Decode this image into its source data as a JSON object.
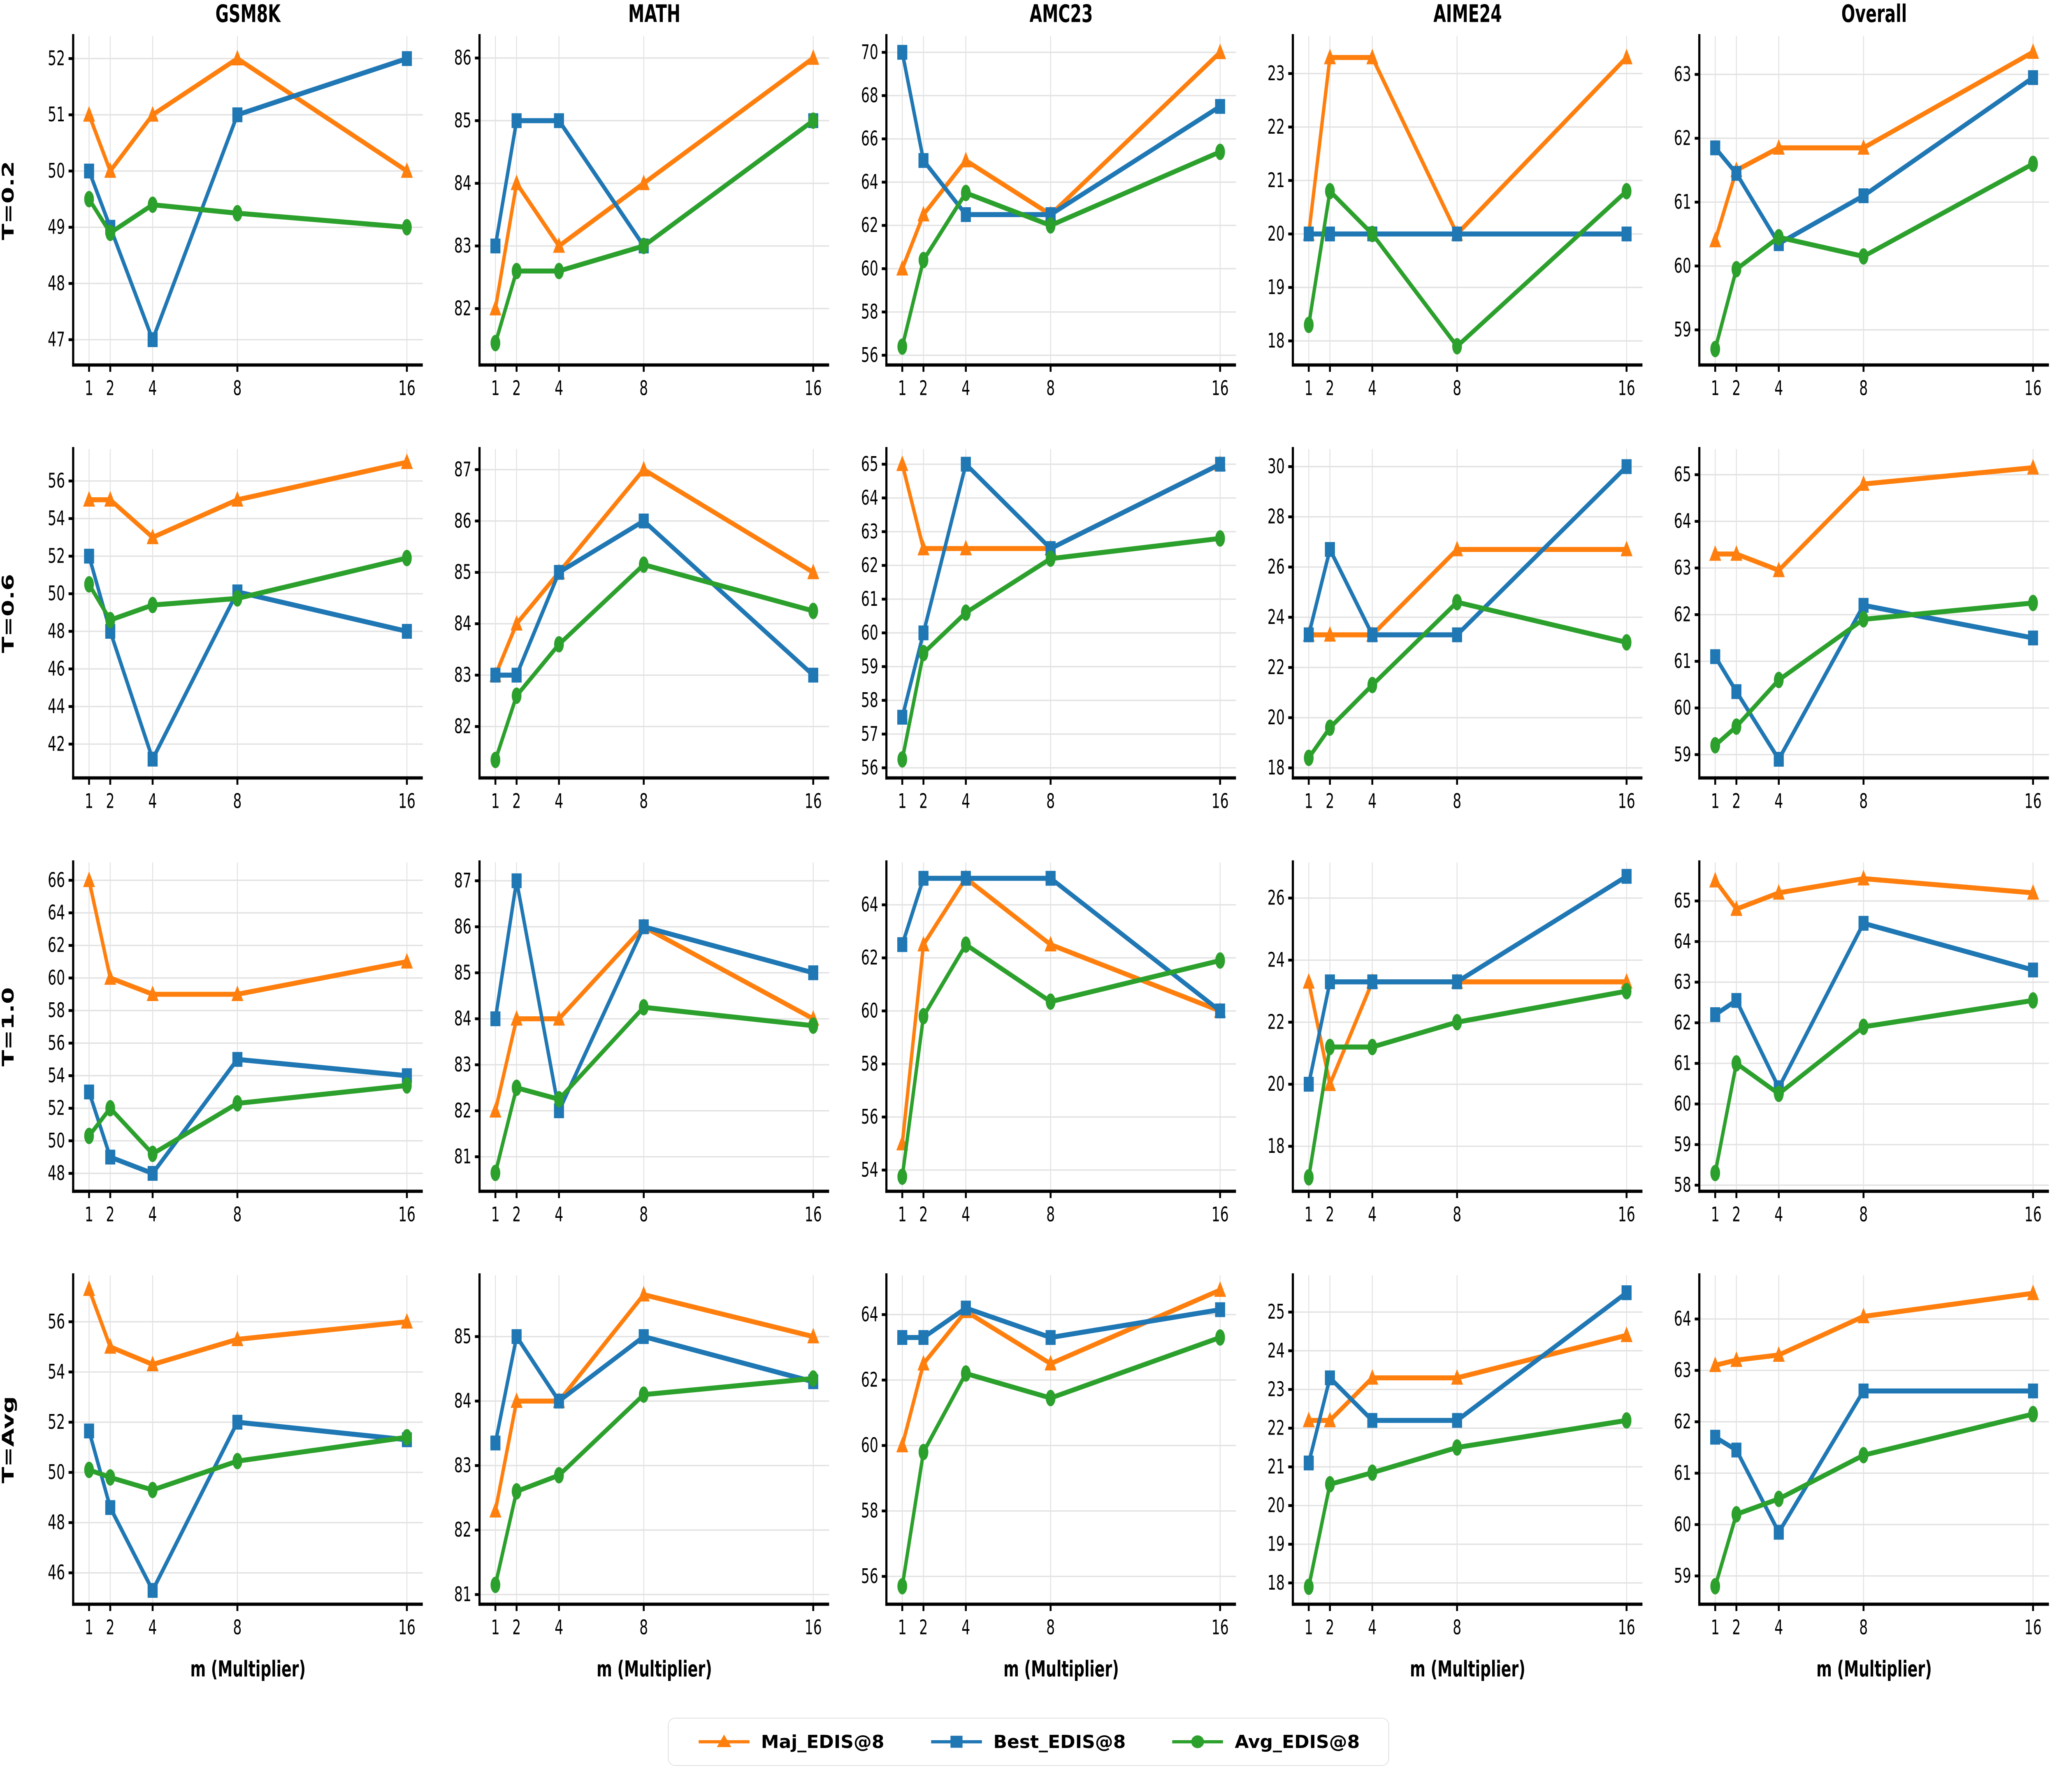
{
  "figure": {
    "row_labels": [
      "T=0.2",
      "T=0.6",
      "T=1.0",
      "T=Avg"
    ],
    "col_titles": [
      "GSM8K",
      "MATH",
      "AMC23",
      "AIME24",
      "Overall"
    ],
    "xlabel": "m (Multiplier)",
    "x_tick_labels": [
      "1",
      "2",
      "4",
      "8",
      "16"
    ]
  },
  "legend": {
    "items": [
      {
        "label": "Maj_EDIS@8",
        "color": "#ff7f0e",
        "marker": "triangle"
      },
      {
        "label": "Best_EDIS@8",
        "color": "#1f77b4",
        "marker": "square"
      },
      {
        "label": "Avg_EDIS@8",
        "color": "#2ca02c",
        "marker": "circle"
      }
    ]
  },
  "chart_data": {
    "type": "line",
    "x": [
      1,
      2,
      4,
      8,
      16
    ],
    "xlabel": "m (Multiplier)",
    "xlim": [
      0.25,
      16.75
    ],
    "grid": true,
    "rows": [
      "T=0.2",
      "T=0.6",
      "T=1.0",
      "T=Avg"
    ],
    "cols": [
      "GSM8K",
      "MATH",
      "AMC23",
      "AIME24",
      "Overall"
    ],
    "series_names": [
      "Maj_EDIS@8",
      "Best_EDIS@8",
      "Avg_EDIS@8"
    ],
    "series_colors": [
      "#ff7f0e",
      "#1f77b4",
      "#2ca02c"
    ],
    "series_markers": [
      "triangle",
      "square",
      "circle"
    ],
    "subplots": [
      {
        "row": "T=0.2",
        "col": "GSM8K",
        "yticks": [
          47,
          48,
          49,
          50,
          51,
          52
        ],
        "ylim": [
          46.55,
          52.4
        ],
        "maj": [
          51,
          50,
          51,
          52,
          50
        ],
        "best": [
          50,
          49,
          47,
          51,
          52
        ],
        "avg": [
          49.5,
          48.9,
          49.4,
          49.25,
          49
        ]
      },
      {
        "row": "T=0.2",
        "col": "MATH",
        "yticks": [
          82,
          83,
          84,
          85,
          86
        ],
        "ylim": [
          81.1,
          86.35
        ],
        "maj": [
          82,
          84,
          83,
          84,
          86
        ],
        "best": [
          83,
          85,
          85,
          83,
          85
        ],
        "avg": [
          81.45,
          82.6,
          82.6,
          83,
          85
        ]
      },
      {
        "row": "T=0.2",
        "col": "AMC23",
        "yticks": [
          56,
          58,
          60,
          62,
          64,
          66,
          68,
          70
        ],
        "ylim": [
          55.55,
          70.75
        ],
        "maj": [
          60,
          62.5,
          65,
          62.5,
          70
        ],
        "best": [
          70,
          65,
          62.5,
          62.5,
          67.5
        ],
        "avg": [
          56.4,
          60.4,
          63.5,
          62,
          65.4
        ]
      },
      {
        "row": "T=0.2",
        "col": "AIME24",
        "yticks": [
          18,
          19,
          20,
          21,
          22,
          23
        ],
        "ylim": [
          17.55,
          23.7
        ],
        "maj": [
          20,
          23.3,
          23.3,
          20,
          23.3
        ],
        "best": [
          20,
          20,
          20,
          20,
          20
        ],
        "avg": [
          18.3,
          20.8,
          20,
          17.9,
          20.8
        ]
      },
      {
        "row": "T=0.2",
        "col": "Overall",
        "yticks": [
          59,
          60,
          61,
          62,
          63
        ],
        "ylim": [
          58.45,
          63.6
        ],
        "maj": [
          60.4,
          61.5,
          61.85,
          61.85,
          63.35
        ],
        "best": [
          61.85,
          61.45,
          60.35,
          61.1,
          62.95
        ],
        "avg": [
          58.7,
          59.95,
          60.45,
          60.15,
          61.6
        ]
      },
      {
        "row": "T=0.6",
        "col": "GSM8K",
        "yticks": [
          42,
          44,
          46,
          48,
          50,
          52,
          54,
          56
        ],
        "ylim": [
          40.2,
          57.7
        ],
        "maj": [
          55,
          55,
          53,
          55,
          57
        ],
        "best": [
          52,
          48,
          41.2,
          50.1,
          48
        ],
        "avg": [
          50.5,
          48.6,
          49.4,
          49.75,
          51.9
        ]
      },
      {
        "row": "T=0.6",
        "col": "MATH",
        "yticks": [
          82,
          83,
          84,
          85,
          86,
          87
        ],
        "ylim": [
          81,
          87.4
        ],
        "maj": [
          83,
          84,
          85,
          87,
          85
        ],
        "best": [
          83,
          83,
          85,
          86,
          83
        ],
        "avg": [
          81.35,
          82.6,
          83.6,
          85.15,
          84.25
        ]
      },
      {
        "row": "T=0.6",
        "col": "AMC23",
        "yticks": [
          56,
          57,
          58,
          59,
          60,
          61,
          62,
          63,
          64,
          65
        ],
        "ylim": [
          55.7,
          65.45
        ],
        "maj": [
          65,
          62.5,
          62.5,
          62.5,
          65
        ],
        "best": [
          57.5,
          60,
          65,
          62.5,
          65
        ],
        "avg": [
          56.25,
          59.4,
          60.6,
          62.2,
          62.8
        ]
      },
      {
        "row": "T=0.6",
        "col": "AIME24",
        "yticks": [
          18,
          20,
          22,
          24,
          26,
          28,
          30
        ],
        "ylim": [
          17.6,
          30.7
        ],
        "maj": [
          23.3,
          23.3,
          23.3,
          26.7,
          26.7
        ],
        "best": [
          23.3,
          26.7,
          23.3,
          23.3,
          30
        ],
        "avg": [
          18.4,
          19.6,
          21.3,
          24.6,
          23
        ]
      },
      {
        "row": "T=0.6",
        "col": "Overall",
        "yticks": [
          59,
          60,
          61,
          62,
          63,
          64,
          65
        ],
        "ylim": [
          58.5,
          65.55
        ],
        "maj": [
          63.3,
          63.3,
          62.95,
          64.8,
          65.15
        ],
        "best": [
          61.1,
          60.35,
          58.9,
          62.2,
          61.5
        ],
        "avg": [
          59.2,
          59.6,
          60.6,
          61.9,
          62.25
        ]
      },
      {
        "row": "T=1.0",
        "col": "GSM8K",
        "yticks": [
          48,
          50,
          52,
          54,
          56,
          58,
          60,
          62,
          64,
          66
        ],
        "ylim": [
          46.9,
          67.1
        ],
        "maj": [
          66,
          60,
          59,
          59,
          61
        ],
        "best": [
          53,
          49,
          48,
          55,
          54
        ],
        "avg": [
          50.3,
          52,
          49.2,
          52.3,
          53.4
        ]
      },
      {
        "row": "T=1.0",
        "col": "MATH",
        "yticks": [
          81,
          82,
          83,
          84,
          85,
          86,
          87
        ],
        "ylim": [
          80.25,
          87.4
        ],
        "maj": [
          82,
          84,
          84,
          86,
          84
        ],
        "best": [
          84,
          87,
          82,
          86,
          85
        ],
        "avg": [
          80.65,
          82.5,
          82.25,
          84.25,
          83.85
        ]
      },
      {
        "row": "T=1.0",
        "col": "AMC23",
        "yticks": [
          54,
          56,
          58,
          60,
          62,
          64
        ],
        "ylim": [
          53.2,
          65.6
        ],
        "maj": [
          55,
          62.5,
          65,
          62.5,
          60
        ],
        "best": [
          62.5,
          65,
          65,
          65,
          60
        ],
        "avg": [
          53.75,
          59.8,
          62.5,
          60.35,
          61.9
        ]
      },
      {
        "row": "T=1.0",
        "col": "AIME24",
        "yticks": [
          18,
          20,
          22,
          24,
          26
        ],
        "ylim": [
          16.55,
          27.15
        ],
        "maj": [
          23.3,
          20,
          23.3,
          23.3,
          23.3
        ],
        "best": [
          20,
          23.3,
          23.3,
          23.3,
          26.7
        ],
        "avg": [
          17,
          21.2,
          21.2,
          22,
          23
        ]
      },
      {
        "row": "T=1.0",
        "col": "Overall",
        "yticks": [
          58,
          59,
          60,
          61,
          62,
          63,
          64,
          65
        ],
        "ylim": [
          57.85,
          65.95
        ],
        "maj": [
          65.5,
          64.8,
          65.2,
          65.55,
          65.2
        ],
        "best": [
          62.2,
          62.55,
          60.4,
          64.45,
          63.3
        ],
        "avg": [
          58.3,
          61,
          60.25,
          61.9,
          62.55
        ]
      },
      {
        "row": "T=Avg",
        "col": "GSM8K",
        "yticks": [
          46,
          48,
          50,
          52,
          54,
          56
        ],
        "ylim": [
          44.75,
          57.85
        ],
        "maj": [
          57.3,
          55,
          54.3,
          55.3,
          56
        ],
        "best": [
          51.65,
          48.6,
          45.3,
          52,
          51.3
        ],
        "avg": [
          50.1,
          49.8,
          49.3,
          50.45,
          51.4
        ]
      },
      {
        "row": "T=Avg",
        "col": "MATH",
        "yticks": [
          81,
          82,
          83,
          84,
          85
        ],
        "ylim": [
          80.85,
          85.95
        ],
        "maj": [
          82.3,
          84,
          84,
          85.65,
          85
        ],
        "best": [
          83.35,
          85,
          84,
          85,
          84.3
        ],
        "avg": [
          81.15,
          82.6,
          82.85,
          84.1,
          84.35
        ]
      },
      {
        "row": "T=Avg",
        "col": "AMC23",
        "yticks": [
          56,
          58,
          60,
          62,
          64
        ],
        "ylim": [
          55.15,
          65.2
        ],
        "maj": [
          60,
          62.5,
          64.1,
          62.5,
          64.75
        ],
        "best": [
          63.3,
          63.3,
          64.2,
          63.3,
          64.15
        ],
        "avg": [
          55.7,
          59.8,
          62.2,
          61.45,
          63.3
        ]
      },
      {
        "row": "T=Avg",
        "col": "AIME24",
        "yticks": [
          18,
          19,
          20,
          21,
          22,
          23,
          24,
          25
        ],
        "ylim": [
          17.45,
          25.95
        ],
        "maj": [
          22.2,
          22.2,
          23.3,
          23.3,
          24.4
        ],
        "best": [
          21.1,
          23.3,
          22.2,
          22.2,
          25.5
        ],
        "avg": [
          17.9,
          20.55,
          20.85,
          21.5,
          22.2
        ]
      },
      {
        "row": "T=Avg",
        "col": "Overall",
        "yticks": [
          59,
          60,
          61,
          62,
          63,
          64
        ],
        "ylim": [
          58.45,
          64.85
        ],
        "maj": [
          63.1,
          63.2,
          63.3,
          64.05,
          64.5
        ],
        "best": [
          61.7,
          61.45,
          59.85,
          62.6,
          62.6
        ],
        "avg": [
          58.8,
          60.2,
          60.5,
          61.35,
          62.15
        ]
      }
    ]
  }
}
